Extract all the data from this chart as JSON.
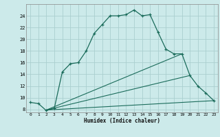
{
  "xlabel": "Humidex (Indice chaleur)",
  "bg_color": "#cceaea",
  "line_color": "#1a6b5a",
  "grid_color": "#aacfcf",
  "xlim": [
    -0.5,
    23.5
  ],
  "ylim": [
    7.5,
    26.0
  ],
  "xticks": [
    0,
    1,
    2,
    3,
    4,
    5,
    6,
    7,
    8,
    9,
    10,
    11,
    12,
    13,
    14,
    15,
    16,
    17,
    18,
    19,
    20,
    21,
    22,
    23
  ],
  "yticks": [
    8,
    10,
    12,
    14,
    16,
    18,
    20,
    22,
    24
  ],
  "curve_x": [
    0,
    1,
    2,
    3,
    4,
    5,
    6,
    7,
    8,
    9,
    10,
    11,
    12,
    13,
    14,
    15,
    16,
    17,
    18,
    19,
    20,
    21,
    22,
    23
  ],
  "curve_y": [
    9.2,
    9.0,
    7.8,
    8.2,
    14.4,
    15.8,
    16.0,
    18.0,
    21.0,
    22.5,
    24.0,
    24.0,
    24.2,
    25.0,
    24.0,
    24.2,
    21.2,
    18.3,
    17.5,
    17.5,
    13.8,
    12.0,
    10.8,
    9.5
  ],
  "line1_x": [
    2,
    19
  ],
  "line1_y": [
    7.9,
    17.5
  ],
  "line2_x": [
    2,
    20
  ],
  "line2_y": [
    7.9,
    13.8
  ],
  "line3_x": [
    2,
    23
  ],
  "line3_y": [
    7.9,
    9.5
  ]
}
